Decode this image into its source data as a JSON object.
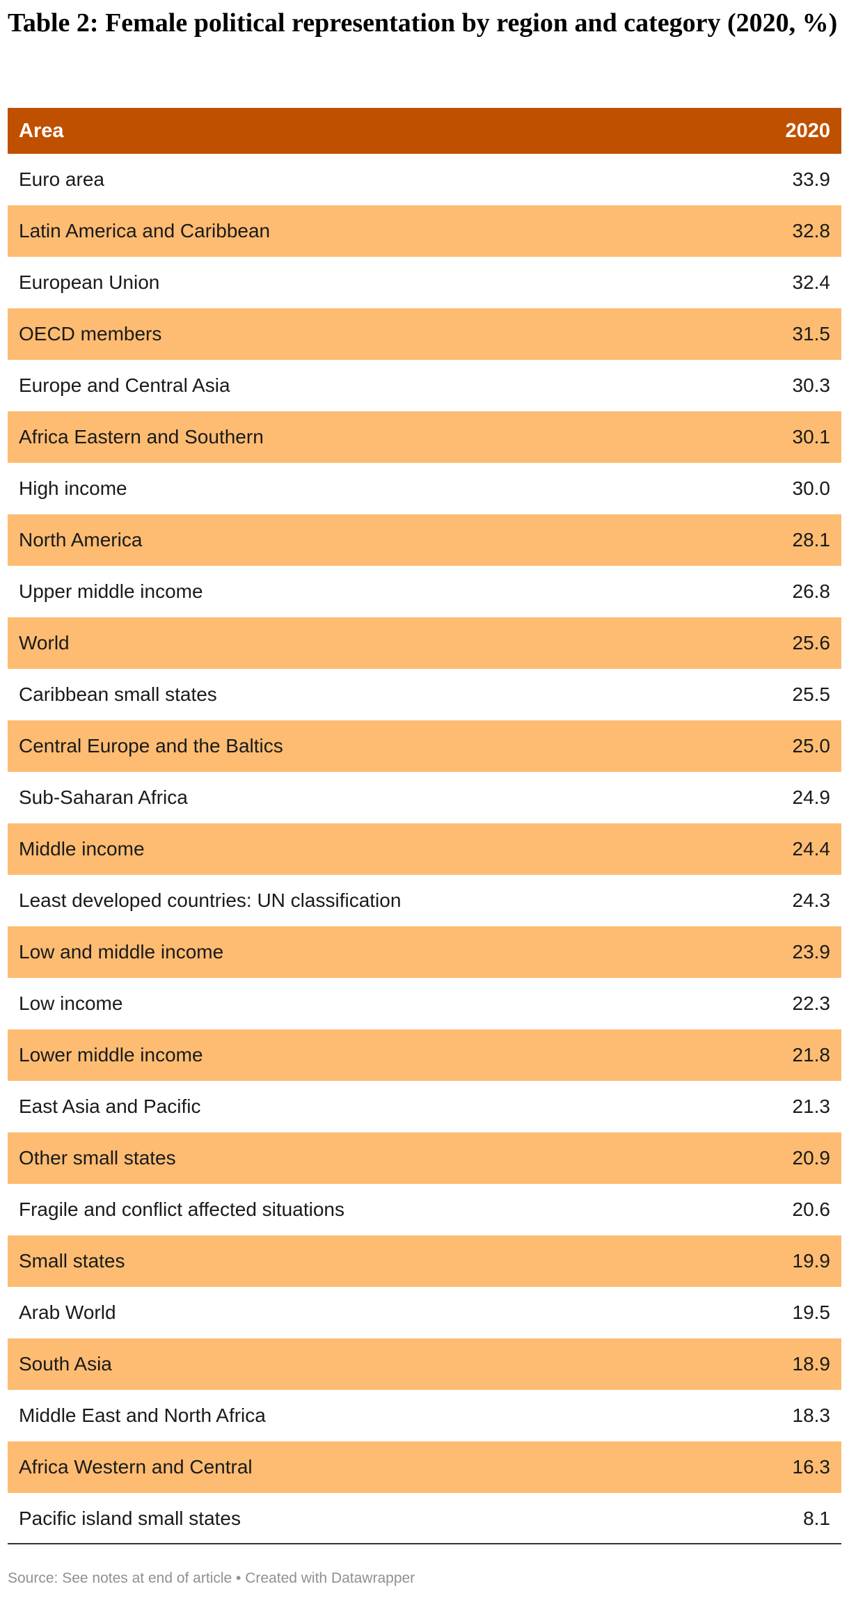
{
  "title": "Table 2: Female political representation by region and category (2020, %)",
  "chart_data": {
    "type": "table",
    "title": "Table 2: Female political representation by region and category (2020, %)",
    "columns": [
      "Area",
      "2020"
    ],
    "rows": [
      {
        "area": "Euro area",
        "value": "33.9"
      },
      {
        "area": "Latin America and Caribbean",
        "value": "32.8"
      },
      {
        "area": "European Union",
        "value": "32.4"
      },
      {
        "area": "OECD members",
        "value": "31.5"
      },
      {
        "area": "Europe and Central Asia",
        "value": "30.3"
      },
      {
        "area": "Africa Eastern and Southern",
        "value": "30.1"
      },
      {
        "area": "High income",
        "value": "30.0"
      },
      {
        "area": "North America",
        "value": "28.1"
      },
      {
        "area": "Upper middle income",
        "value": "26.8"
      },
      {
        "area": "World",
        "value": "25.6"
      },
      {
        "area": "Caribbean small states",
        "value": "25.5"
      },
      {
        "area": "Central Europe and the Baltics",
        "value": "25.0"
      },
      {
        "area": "Sub-Saharan Africa",
        "value": "24.9"
      },
      {
        "area": "Middle income",
        "value": "24.4"
      },
      {
        "area": "Least developed countries: UN classification",
        "value": "24.3"
      },
      {
        "area": "Low and middle income",
        "value": "23.9"
      },
      {
        "area": "Low income",
        "value": "22.3"
      },
      {
        "area": "Lower middle income",
        "value": "21.8"
      },
      {
        "area": "East Asia and Pacific",
        "value": "21.3"
      },
      {
        "area": "Other small states",
        "value": "20.9"
      },
      {
        "area": "Fragile and conflict affected situations",
        "value": "20.6"
      },
      {
        "area": "Small states",
        "value": "19.9"
      },
      {
        "area": "Arab World",
        "value": "19.5"
      },
      {
        "area": "South Asia",
        "value": "18.9"
      },
      {
        "area": "Middle East and North Africa",
        "value": "18.3"
      },
      {
        "area": "Africa Western and Central",
        "value": "16.3"
      },
      {
        "area": "Pacific island small states",
        "value": "8.1"
      }
    ]
  },
  "footer": "Source: See notes at end of article • Created with Datawrapper",
  "colors": {
    "header_bg": "#bf5000",
    "alt_row_bg": "#fdbc72",
    "plain_row_bg": "#ffffff"
  }
}
